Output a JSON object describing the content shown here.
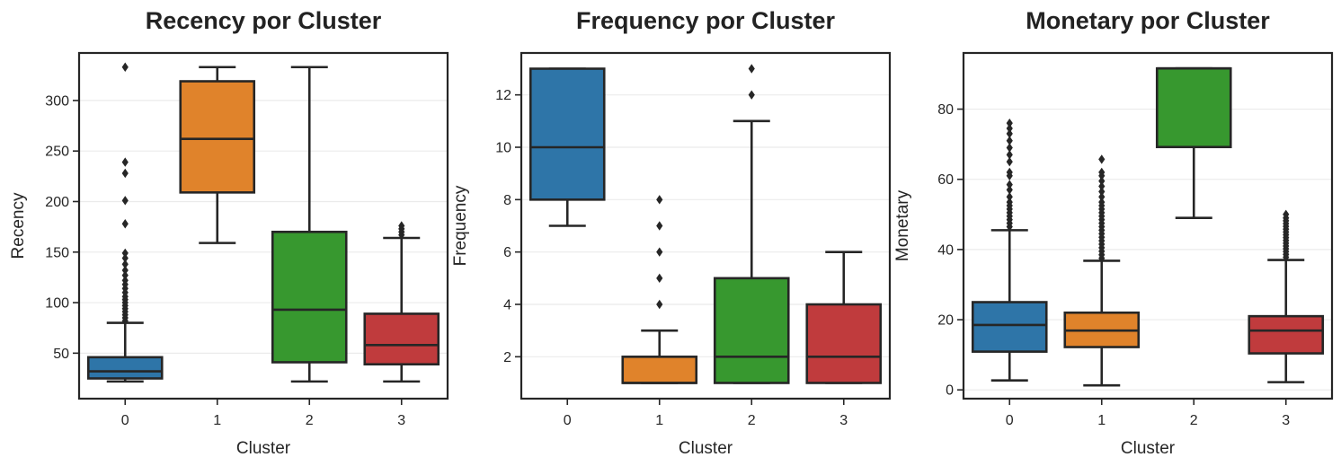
{
  "figure": {
    "background": "#ffffff",
    "axes_color": "#262626",
    "grid_color": "#ebebeb"
  },
  "palette": {
    "0": "#2e75a8",
    "1": "#e0832b",
    "2": "#37982f",
    "3": "#c03b3d"
  },
  "chart_data": [
    {
      "type": "box",
      "title": "Recency por Cluster",
      "xlabel": "Cluster",
      "ylabel": "Recency",
      "categories": [
        "0",
        "1",
        "2",
        "3"
      ],
      "ylim": [
        5,
        347
      ],
      "yticks": [
        50,
        100,
        150,
        200,
        250,
        300
      ],
      "grid": "y",
      "boxes": [
        {
          "category": "0",
          "whislo": 22,
          "q1": 25,
          "med": 32,
          "q3": 46,
          "whishi": 80,
          "fliers": [
            82,
            85,
            88,
            91,
            94,
            97,
            100,
            103,
            106,
            110,
            114,
            118,
            122,
            127,
            132,
            138,
            144,
            149,
            178,
            201,
            228,
            239,
            333
          ]
        },
        {
          "category": "1",
          "whislo": 159,
          "q1": 209,
          "med": 262,
          "q3": 319,
          "whishi": 333,
          "fliers": []
        },
        {
          "category": "2",
          "whislo": 22,
          "q1": 41,
          "med": 93,
          "q3": 170,
          "whishi": 333,
          "fliers": []
        },
        {
          "category": "3",
          "whislo": 22,
          "q1": 39,
          "med": 58,
          "q3": 89,
          "whishi": 164,
          "fliers": [
            167,
            170,
            173,
            176
          ]
        }
      ]
    },
    {
      "type": "box",
      "title": "Frequency por Cluster",
      "xlabel": "Cluster",
      "ylabel": "Frequency",
      "categories": [
        "0",
        "1",
        "2",
        "3"
      ],
      "ylim": [
        0.4,
        13.6
      ],
      "yticks": [
        2,
        4,
        6,
        8,
        10,
        12
      ],
      "grid": "y",
      "boxes": [
        {
          "category": "0",
          "whislo": 7,
          "q1": 8,
          "med": 10,
          "q3": 13,
          "whishi": 13,
          "fliers": []
        },
        {
          "category": "1",
          "whislo": 1,
          "q1": 1,
          "med": 1,
          "q3": 2,
          "whishi": 3,
          "fliers": [
            4,
            5,
            6,
            7,
            8
          ]
        },
        {
          "category": "2",
          "whislo": 1,
          "q1": 1,
          "med": 2,
          "q3": 5,
          "whishi": 11,
          "fliers": [
            12,
            13
          ]
        },
        {
          "category": "3",
          "whislo": 1,
          "q1": 1,
          "med": 2,
          "q3": 4,
          "whishi": 6,
          "fliers": []
        }
      ]
    },
    {
      "type": "box",
      "title": "Monetary por Cluster",
      "xlabel": "Cluster",
      "ylabel": "Monetary",
      "categories": [
        "0",
        "1",
        "2",
        "3"
      ],
      "ylim": [
        -2.5,
        96
      ],
      "yticks": [
        0,
        20,
        40,
        60,
        80
      ],
      "grid": "y",
      "boxes": [
        {
          "category": "0",
          "whislo": 2.7,
          "q1": 10.9,
          "med": 18.5,
          "q3": 25,
          "whishi": 45.5,
          "fliers": [
            46.5,
            47.5,
            48.5,
            49.5,
            50.5,
            51.5,
            52.5,
            53.5,
            55,
            57,
            58.5,
            61,
            62,
            65,
            67,
            69,
            71,
            73,
            74.5,
            76
          ]
        },
        {
          "category": "1",
          "whislo": 1.3,
          "q1": 12.2,
          "med": 16.9,
          "q3": 22,
          "whishi": 36.8,
          "fliers": [
            37.5,
            38.5,
            39.5,
            40.5,
            41.5,
            42.5,
            43.5,
            44.5,
            45.5,
            46.5,
            47.5,
            48.5,
            49.5,
            50.5,
            51.5,
            52.5,
            53.5,
            55,
            56.5,
            58,
            59.5,
            61,
            62,
            65.7
          ]
        },
        {
          "category": "2",
          "whislo": 49,
          "q1": 69.2,
          "med": 91.6,
          "q3": 91.6,
          "whishi": 91.6,
          "fliers": []
        },
        {
          "category": "3",
          "whislo": 2.2,
          "q1": 10.4,
          "med": 16.9,
          "q3": 21,
          "whishi": 37,
          "fliers": [
            37.8,
            38.6,
            39.4,
            40.2,
            41,
            41.8,
            42.6,
            43.4,
            44.2,
            45,
            45.8,
            46.6,
            47.4,
            48.2,
            49,
            50
          ]
        }
      ]
    }
  ]
}
